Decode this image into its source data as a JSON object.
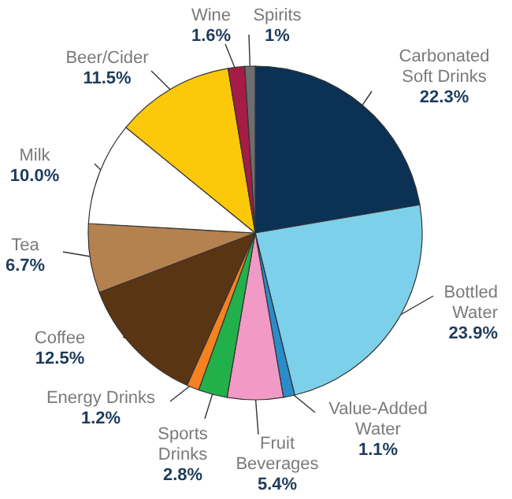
{
  "chart_data": {
    "type": "pie",
    "categories": [
      "Carbonated Soft Drinks",
      "Bottled Water",
      "Value-Added Water",
      "Fruit Beverages",
      "Sports Drinks",
      "Energy Drinks",
      "Coffee",
      "Tea",
      "Milk",
      "Beer/Cider",
      "Wine",
      "Spirits"
    ],
    "values": [
      22.3,
      23.9,
      1.1,
      5.4,
      2.8,
      1.2,
      12.5,
      6.7,
      10.0,
      11.5,
      1.6,
      1
    ],
    "value_labels": [
      "22.3%",
      "23.9%",
      "1.1%",
      "5.4%",
      "2.8%",
      "1.2%",
      "12.5%",
      "6.7%",
      "10.0%",
      "11.5%",
      "1.6%",
      "1%"
    ],
    "colors": [
      "#0b3154",
      "#7dd0ea",
      "#2a8cc8",
      "#f29ac6",
      "#22b04b",
      "#f58220",
      "#5a3514",
      "#b5814f",
      "#ffffff",
      "#fcc80a",
      "#a51c45",
      "#6d6e71"
    ]
  }
}
